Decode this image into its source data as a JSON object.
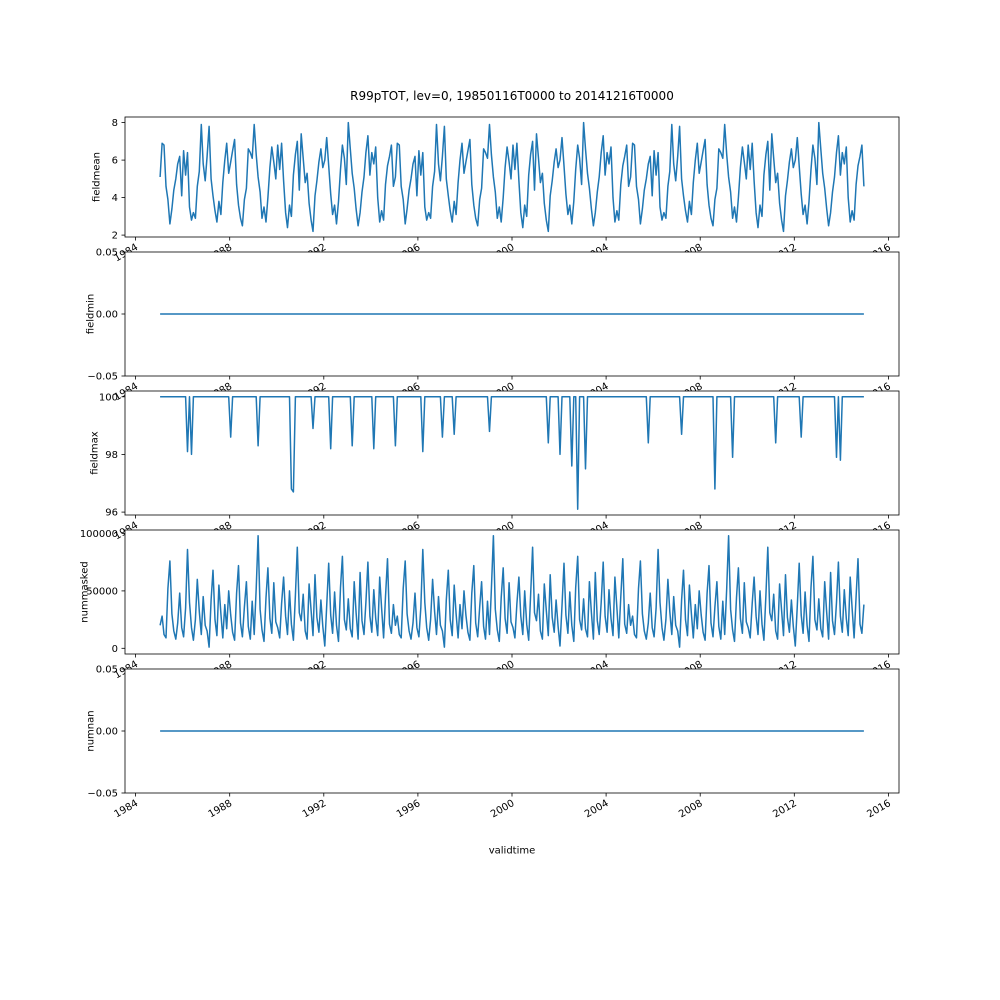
{
  "title": "R99pTOT, lev=0, 19850116T0000 to 20141216T0000",
  "line_color": "#1f77b4",
  "x_axis": {
    "label": "validtime",
    "lim": [
      1983.55,
      2016.45
    ],
    "ticks": [
      1984,
      1988,
      1992,
      1996,
      2000,
      2004,
      2008,
      2012,
      2016
    ],
    "tick_labels": [
      "1984",
      "1988",
      "1992",
      "1996",
      "2000",
      "2004",
      "2008",
      "2012",
      "2016"
    ]
  },
  "series_time": {
    "start": 1985.0417,
    "step": 0.0833333,
    "n": 360
  },
  "chart_data": [
    {
      "type": "line",
      "name": "fieldmean",
      "ylabel": "fieldmean",
      "ylim": [
        1.9,
        8.3
      ],
      "yticks": [
        2,
        4,
        6,
        8
      ],
      "ytick_labels": [
        "2",
        "4",
        "6",
        "8"
      ],
      "values": [
        5.1,
        6.9,
        6.8,
        4.6,
        3.9,
        2.6,
        3.4,
        4.4,
        5.0,
        5.8,
        6.2,
        4.1,
        6.5,
        5.2,
        6.4,
        3.5,
        2.8,
        3.2,
        2.9,
        4.6,
        5.4,
        7.9,
        5.8,
        4.9,
        6.2,
        7.8,
        5.0,
        4.1,
        3.3,
        2.7,
        3.8,
        3.1,
        4.8,
        6.0,
        6.9,
        5.3,
        5.9,
        6.5,
        7.1,
        4.7,
        3.6,
        2.9,
        2.5,
        3.9,
        4.5,
        6.6,
        6.4,
        6.1,
        7.9,
        6.3,
        5.1,
        4.3,
        2.9,
        3.5,
        2.7,
        4.0,
        5.6,
        6.7,
        5.9,
        5.0,
        6.8,
        5.5,
        6.9,
        4.9,
        3.2,
        2.4,
        3.6,
        3.0,
        5.2,
        6.3,
        7.0,
        4.4,
        7.4,
        6.1,
        4.8,
        5.3,
        3.7,
        2.8,
        2.2,
        4.1,
        4.9,
        5.9,
        6.6,
        5.6,
        6.0,
        7.2,
        5.7,
        4.2,
        3.1,
        3.6,
        2.6,
        3.8,
        5.5,
        6.8,
        6.1,
        4.7,
        8.0,
        6.6,
        5.3,
        4.5,
        3.4,
        2.5,
        3.2,
        4.3,
        5.1,
        6.4,
        7.3,
        5.2,
        6.4,
        5.8,
        6.7,
        4.0,
        2.7,
        3.3,
        2.8,
        4.7,
        5.7,
        6.2,
        6.8,
        4.6,
        5.1,
        6.9,
        6.8,
        4.6,
        3.9,
        2.6,
        3.4,
        4.4,
        5.0,
        5.8,
        6.2,
        4.1,
        6.5,
        5.2,
        6.4,
        3.5,
        2.8,
        3.2,
        2.9,
        4.6,
        5.4,
        7.9,
        5.8,
        4.9,
        6.2,
        7.8,
        5.0,
        4.1,
        3.3,
        2.7,
        3.8,
        3.1,
        4.8,
        6.0,
        6.9,
        5.3,
        5.9,
        6.5,
        7.1,
        4.7,
        3.6,
        2.9,
        2.5,
        3.9,
        4.5,
        6.6,
        6.4,
        6.1,
        7.9,
        6.3,
        5.1,
        4.3,
        2.9,
        3.5,
        2.7,
        4.0,
        5.6,
        6.7,
        5.9,
        5.0,
        6.8,
        5.5,
        6.9,
        4.9,
        3.2,
        2.4,
        3.6,
        3.0,
        5.2,
        6.3,
        7.0,
        4.4,
        7.4,
        6.1,
        4.8,
        5.3,
        3.7,
        2.8,
        2.2,
        4.1,
        4.9,
        5.9,
        6.6,
        5.6,
        6.0,
        7.2,
        5.7,
        4.2,
        3.1,
        3.6,
        2.6,
        3.8,
        5.5,
        6.8,
        6.1,
        4.7,
        8.0,
        6.6,
        5.3,
        4.5,
        3.4,
        2.5,
        3.2,
        4.3,
        5.1,
        6.4,
        7.3,
        5.2,
        6.4,
        5.8,
        6.7,
        4.0,
        2.7,
        3.3,
        2.8,
        4.7,
        5.7,
        6.2,
        6.8,
        4.6,
        5.1,
        6.9,
        6.8,
        4.6,
        3.9,
        2.6,
        3.4,
        4.4,
        5.0,
        5.8,
        6.2,
        4.1,
        6.5,
        5.2,
        6.4,
        3.5,
        2.8,
        3.2,
        2.9,
        4.6,
        5.4,
        7.9,
        5.8,
        4.9,
        6.2,
        7.8,
        5.0,
        4.1,
        3.3,
        2.7,
        3.8,
        3.1,
        4.8,
        6.0,
        6.9,
        5.3,
        5.9,
        6.5,
        7.1,
        4.7,
        3.6,
        2.9,
        2.5,
        3.9,
        4.5,
        6.6,
        6.4,
        6.1,
        7.9,
        6.3,
        5.1,
        4.3,
        2.9,
        3.5,
        2.7,
        4.0,
        5.6,
        6.7,
        5.9,
        5.0,
        6.8,
        5.5,
        6.9,
        4.9,
        3.2,
        2.4,
        3.6,
        3.0,
        5.2,
        6.3,
        7.0,
        4.4,
        7.4,
        6.1,
        4.8,
        5.3,
        3.7,
        2.8,
        2.2,
        4.1,
        4.9,
        5.9,
        6.6,
        5.6,
        6.0,
        7.2,
        5.7,
        4.2,
        3.1,
        3.6,
        2.6,
        3.8,
        5.5,
        6.8,
        6.1,
        4.7,
        8.0,
        6.6,
        5.3,
        4.5,
        3.4,
        2.5,
        3.2,
        4.3,
        5.1,
        6.4,
        7.3,
        5.2,
        6.4,
        5.8,
        6.7,
        4.0,
        2.7,
        3.3,
        2.8,
        4.7,
        5.7,
        6.2,
        6.8,
        4.6
      ]
    },
    {
      "type": "line",
      "name": "fieldmin",
      "ylabel": "fieldmin",
      "ylim": [
        -0.05,
        0.05
      ],
      "yticks": [
        -0.05,
        0.0,
        0.05
      ],
      "ytick_labels": [
        "−0.05",
        "0.00",
        "0.05"
      ],
      "constant": 0
    },
    {
      "type": "line",
      "name": "fieldmax",
      "ylabel": "fieldmax",
      "ylim": [
        95.9,
        100.2
      ],
      "yticks": [
        96,
        98,
        100
      ],
      "ytick_labels": [
        "96",
        "98",
        "100"
      ],
      "base": 100,
      "dips": [
        [
          14,
          98.1
        ],
        [
          16,
          98.0
        ],
        [
          36,
          98.6
        ],
        [
          50,
          98.3
        ],
        [
          67,
          96.8
        ],
        [
          68,
          96.7
        ],
        [
          78,
          98.9
        ],
        [
          87,
          98.2
        ],
        [
          98,
          98.3
        ],
        [
          109,
          98.2
        ],
        [
          120,
          98.3
        ],
        [
          134,
          98.1
        ],
        [
          144,
          98.6
        ],
        [
          150,
          98.7
        ],
        [
          168,
          98.8
        ],
        [
          198,
          98.4
        ],
        [
          204,
          98.0
        ],
        [
          210,
          97.6
        ],
        [
          213,
          96.1
        ],
        [
          217,
          97.5
        ],
        [
          249,
          98.4
        ],
        [
          266,
          98.7
        ],
        [
          283,
          96.8
        ],
        [
          292,
          97.9
        ],
        [
          314,
          98.4
        ],
        [
          327,
          98.6
        ],
        [
          345,
          97.9
        ],
        [
          347,
          97.8
        ]
      ]
    },
    {
      "type": "line",
      "name": "nummasked",
      "ylabel": "nummasked",
      "ylim": [
        -5000,
        103000
      ],
      "yticks": [
        0,
        50000,
        100000
      ],
      "ytick_labels": [
        "0",
        "50000",
        "100000"
      ],
      "values": [
        20000,
        28000,
        12000,
        9000,
        52000,
        76000,
        30000,
        15000,
        8000,
        22000,
        48000,
        18000,
        10000,
        35000,
        86000,
        40000,
        18000,
        7000,
        25000,
        60000,
        32000,
        12000,
        45000,
        20000,
        15000,
        1000,
        42000,
        68000,
        25000,
        11000,
        55000,
        30000,
        9000,
        38000,
        17000,
        50000,
        29000,
        14000,
        7000,
        48000,
        72000,
        22000,
        10000,
        36000,
        58000,
        19000,
        8000,
        41000,
        12000,
        52000,
        98000,
        34000,
        16000,
        6000,
        44000,
        70000,
        26000,
        13000,
        57000,
        23000,
        18000,
        9000,
        39000,
        62000,
        28000,
        12000,
        50000,
        21000,
        7000,
        46000,
        88000,
        31000,
        24000,
        47000,
        15000,
        8000,
        56000,
        33000,
        11000,
        64000,
        27000,
        14000,
        42000,
        19000,
        2000,
        37000,
        74000,
        29000,
        13000,
        49000,
        20000,
        6000,
        53000,
        80000,
        25000,
        16000,
        43000,
        17000,
        10000,
        58000,
        31000,
        8000,
        66000,
        24000,
        12000,
        40000,
        75000,
        28000,
        14000,
        51000,
        26000,
        11000,
        62000,
        35000,
        9000,
        45000,
        78000,
        21000,
        13000,
        38000,
        20000,
        28000,
        12000,
        9000,
        52000,
        76000,
        30000,
        15000,
        8000,
        22000,
        48000,
        18000,
        10000,
        35000,
        86000,
        40000,
        18000,
        7000,
        25000,
        60000,
        32000,
        12000,
        45000,
        20000,
        15000,
        1000,
        42000,
        68000,
        25000,
        11000,
        55000,
        30000,
        9000,
        38000,
        17000,
        50000,
        29000,
        14000,
        7000,
        48000,
        72000,
        22000,
        10000,
        36000,
        58000,
        19000,
        8000,
        41000,
        12000,
        52000,
        98000,
        34000,
        16000,
        6000,
        44000,
        70000,
        26000,
        13000,
        57000,
        23000,
        18000,
        9000,
        39000,
        62000,
        28000,
        12000,
        50000,
        21000,
        7000,
        46000,
        88000,
        31000,
        24000,
        47000,
        15000,
        8000,
        56000,
        33000,
        11000,
        64000,
        27000,
        14000,
        42000,
        19000,
        2000,
        37000,
        74000,
        29000,
        13000,
        49000,
        20000,
        6000,
        53000,
        80000,
        25000,
        16000,
        43000,
        17000,
        10000,
        58000,
        31000,
        8000,
        66000,
        24000,
        12000,
        40000,
        75000,
        28000,
        14000,
        51000,
        26000,
        11000,
        62000,
        35000,
        9000,
        45000,
        78000,
        21000,
        13000,
        38000,
        20000,
        28000,
        12000,
        9000,
        52000,
        76000,
        30000,
        15000,
        8000,
        22000,
        48000,
        18000,
        10000,
        35000,
        86000,
        40000,
        18000,
        7000,
        25000,
        60000,
        32000,
        12000,
        45000,
        20000,
        15000,
        1000,
        42000,
        68000,
        25000,
        11000,
        55000,
        30000,
        9000,
        38000,
        17000,
        50000,
        29000,
        14000,
        7000,
        48000,
        72000,
        22000,
        10000,
        36000,
        58000,
        19000,
        8000,
        41000,
        12000,
        52000,
        98000,
        34000,
        16000,
        6000,
        44000,
        70000,
        26000,
        13000,
        57000,
        23000,
        18000,
        9000,
        39000,
        62000,
        28000,
        12000,
        50000,
        21000,
        7000,
        46000,
        88000,
        31000,
        24000,
        47000,
        15000,
        8000,
        56000,
        33000,
        11000,
        64000,
        27000,
        14000,
        42000,
        19000,
        2000,
        37000,
        74000,
        29000,
        13000,
        49000,
        20000,
        6000,
        53000,
        80000,
        25000,
        16000,
        43000,
        17000,
        10000,
        58000,
        31000,
        8000,
        66000,
        24000,
        12000,
        40000,
        75000,
        28000,
        14000,
        51000,
        26000,
        11000,
        62000,
        35000,
        9000,
        45000,
        78000,
        21000,
        13000,
        38000
      ]
    },
    {
      "type": "line",
      "name": "numnan",
      "ylabel": "numnan",
      "ylim": [
        -0.05,
        0.05
      ],
      "yticks": [
        -0.05,
        0.0,
        0.05
      ],
      "ytick_labels": [
        "−0.05",
        "0.00",
        "0.05"
      ],
      "constant": 0
    }
  ]
}
